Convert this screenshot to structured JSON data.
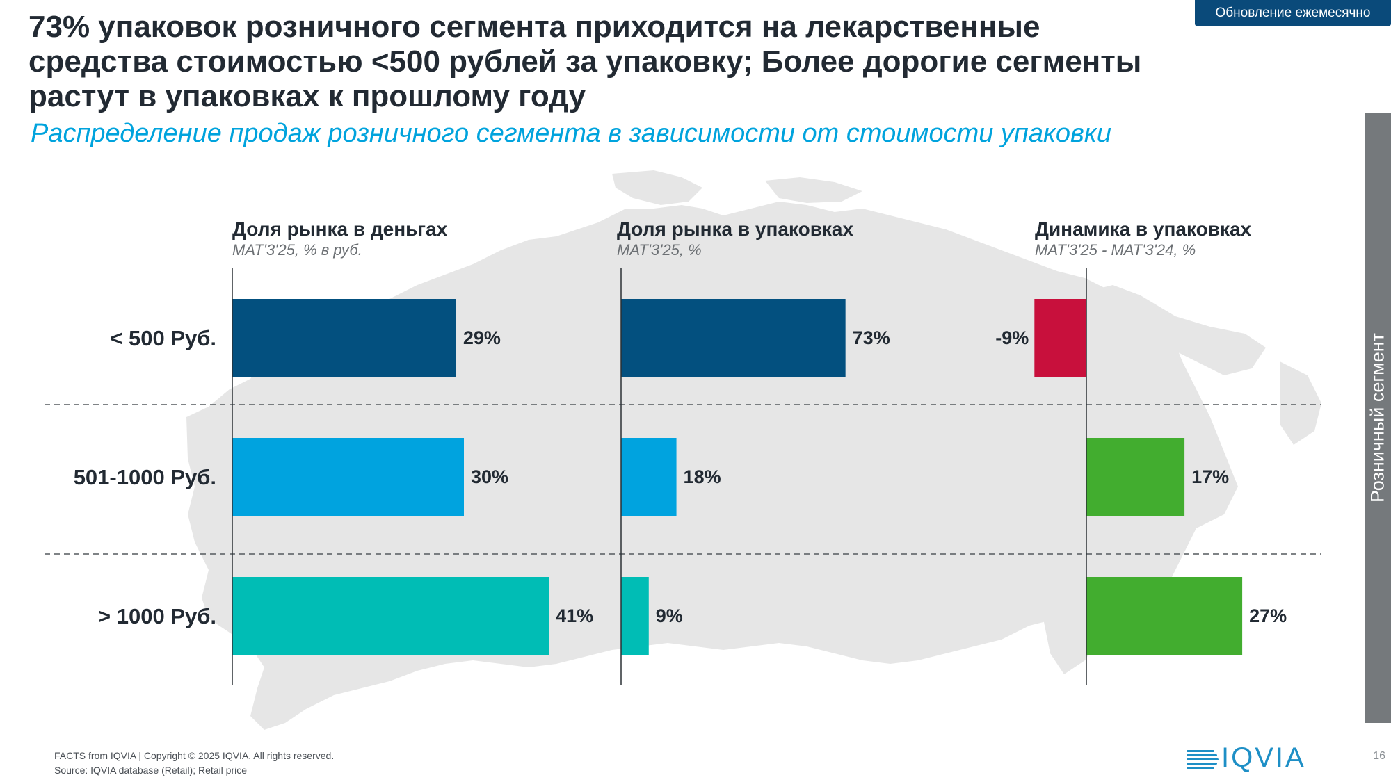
{
  "badge": "Обновление ежемесячно",
  "title": "73% упаковок розничного сегмента приходится на лекарственные средства стоимостью <500 рублей за упаковку; Более дорогие сегменты растут в упаковках к прошлому году",
  "subtitle": "Распределение продаж розничного сегмента в зависимости от стоимости упаковки",
  "side_tab": "Розничный сегмент",
  "chart_data": {
    "type": "bar",
    "orientation": "horizontal",
    "categories": [
      "< 500 Руб.",
      "501-1000 Руб.",
      "> 1000 Руб."
    ],
    "panels": [
      {
        "title": "Доля рынка в деньгах",
        "subtitle": "MAT'3'25, % в руб.",
        "values": [
          29,
          30,
          41
        ],
        "labels": [
          "29%",
          "30%",
          "41%"
        ],
        "colors": [
          "#03507f",
          "#00a3df",
          "#00bdb5"
        ]
      },
      {
        "title": "Доля рынка в упаковках",
        "subtitle": "MAT'3'25, %",
        "values": [
          73,
          18,
          9
        ],
        "labels": [
          "73%",
          "18%",
          "9%"
        ],
        "colors": [
          "#03507f",
          "#00a3df",
          "#00bdb5"
        ]
      },
      {
        "title": "Динамика в упаковках",
        "subtitle": "MAT'3'25 - MAT'3'24, %",
        "values": [
          -9,
          17,
          27
        ],
        "labels": [
          "-9%",
          "17%",
          "27%"
        ],
        "colors": [
          "#c8103c",
          "#42ad2f",
          "#42ad2f"
        ]
      }
    ]
  },
  "footer": {
    "line1": "FACTS from IQVIA | Copyright © 2025 IQVIA. All rights reserved.",
    "line2": "Source: IQVIA database (Retail); Retail price"
  },
  "logo_text": "IQVIA",
  "page_number": "16"
}
